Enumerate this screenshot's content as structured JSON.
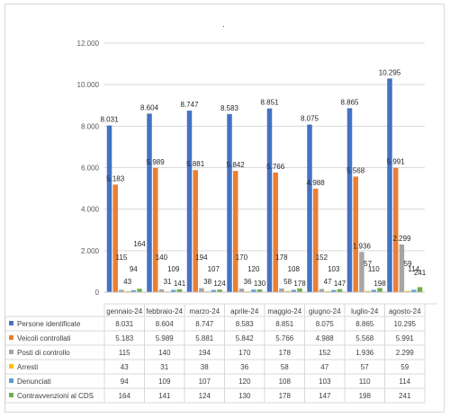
{
  "chart_data": {
    "type": "bar",
    "title": "",
    "xlabel": "",
    "ylabel": "",
    "ylim": [
      0,
      12000
    ],
    "y_ticks": [
      "0",
      "2.000",
      "4.000",
      "6.000",
      "8.000",
      "10.000",
      "12.000"
    ],
    "grid": "horizontal",
    "legend_placement": "data-table-below",
    "categories": [
      "gennaio-24",
      "febbraio-24",
      "marzo-24",
      "aprile-24",
      "maggio-24",
      "giugno-24",
      "luglio-24",
      "agosto-24"
    ],
    "series": [
      {
        "name": "Persone identificate",
        "color": "#4472c4",
        "values": [
          8031,
          8604,
          8747,
          8583,
          8851,
          8075,
          8865,
          10295
        ],
        "labels": [
          "8.031",
          "8.604",
          "8.747",
          "8.583",
          "8.851",
          "8.075",
          "8.865",
          "10.295"
        ]
      },
      {
        "name": "Veicoli controllati",
        "color": "#ed7d31",
        "values": [
          5183,
          5989,
          5881,
          5842,
          5766,
          4988,
          5568,
          5991
        ],
        "labels": [
          "5.183",
          "5.989",
          "5.881",
          "5.842",
          "5.766",
          "4.988",
          "5.568",
          "5.991"
        ]
      },
      {
        "name": "Posti di controllo",
        "color": "#a5a5a5",
        "values": [
          115,
          140,
          194,
          170,
          178,
          152,
          1936,
          2299
        ],
        "labels": [
          "115",
          "140",
          "194",
          "170",
          "178",
          "152",
          "1.936",
          "2.299"
        ]
      },
      {
        "name": "Arresti",
        "color": "#ffc000",
        "values": [
          43,
          31,
          38,
          36,
          58,
          47,
          57,
          59
        ],
        "labels": [
          "43",
          "31",
          "38",
          "36",
          "58",
          "47",
          "57",
          "59"
        ]
      },
      {
        "name": "Denunciati",
        "color": "#5b9bd5",
        "values": [
          94,
          109,
          107,
          120,
          108,
          103,
          110,
          114
        ],
        "labels": [
          "94",
          "109",
          "107",
          "120",
          "108",
          "103",
          "110",
          "114"
        ]
      },
      {
        "name": "Contravvenzioni al CDS",
        "color": "#70ad47",
        "values": [
          164,
          141,
          124,
          130,
          178,
          147,
          198,
          241
        ],
        "labels": [
          "164",
          "141",
          "124",
          "130",
          "178",
          "147",
          "198",
          "241"
        ]
      }
    ],
    "stray_mark": "."
  }
}
